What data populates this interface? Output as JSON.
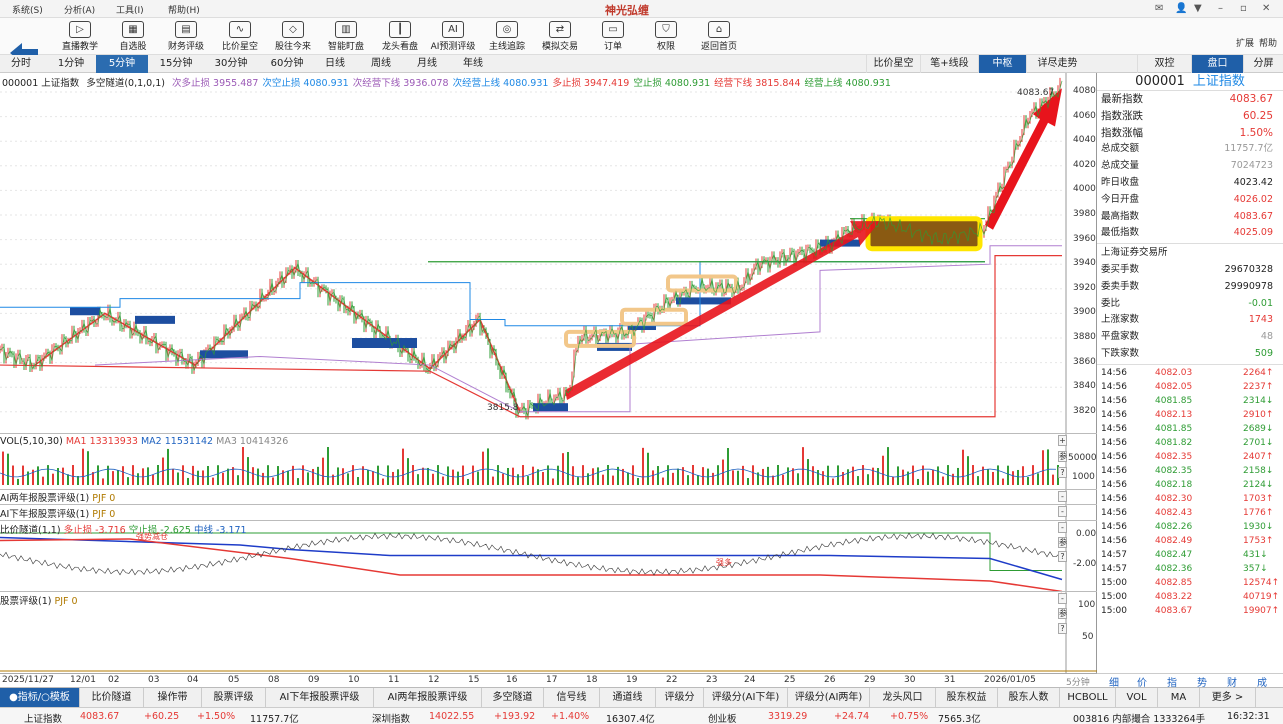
{
  "menu": {
    "items": [
      "系统(S)",
      "分析(A)",
      "工具(I)",
      "帮助(H)"
    ],
    "app_title": "神光弘缠"
  },
  "toolbar": {
    "buttons": [
      "直播教学",
      "自选股",
      "财务评级",
      "比价星空",
      "股往今来",
      "智能盯盘",
      "龙头看盘",
      "AI预测评级",
      "主线追踪",
      "模拟交易",
      "订单",
      "权限",
      "返回首页"
    ],
    "extra": [
      "扩展",
      "帮助"
    ]
  },
  "periods": {
    "tabs": [
      "分时",
      "1分钟",
      "5分钟",
      "15分钟",
      "30分钟",
      "60分钟",
      "日线",
      "周线",
      "月线",
      "年线"
    ],
    "active": "5分钟"
  },
  "right_tabs": {
    "items": [
      "比价星空",
      "笔+线段",
      "中枢",
      "详尽走势",
      "双控",
      "盘口",
      "分屏"
    ],
    "active": [
      "中枢",
      "盘口"
    ]
  },
  "main_legend": {
    "code_name": "000001 上证指数",
    "indicator": "多空隧道(0,1,0,1)",
    "items": [
      {
        "text": "次多止损 3955.487",
        "color": "#9b59b6"
      },
      {
        "text": "次空止损 4080.931",
        "color": "#1e88e5"
      },
      {
        "text": "次经营下线 3936.078",
        "color": "#9b59b6"
      },
      {
        "text": "次经营上线 4080.931",
        "color": "#1e88e5"
      },
      {
        "text": "多止损 3947.419",
        "color": "#e53935"
      },
      {
        "text": "空止损 4080.931",
        "color": "#2e9c34"
      },
      {
        "text": "经营下线 3815.844",
        "color": "#e53935"
      },
      {
        "text": "经营上线 4080.931",
        "color": "#2e9c34"
      }
    ]
  },
  "price_axis": {
    "labels": [
      "4080",
      "4060",
      "4040",
      "4020",
      "4000",
      "3980",
      "3960",
      "3940",
      "3920",
      "3900",
      "3880",
      "3860",
      "3840",
      "3820"
    ],
    "high_label": "4083.67",
    "low_label": "3815.8"
  },
  "vol_legend": {
    "title": "VOL(5,10,30)",
    "ma1": "MA1 13313933",
    "ma2": "MA2 11531142",
    "ma3": "MA3 10414326",
    "axis": [
      "50000",
      "1000"
    ]
  },
  "ai_two_year": {
    "title": "AI两年报股票评级(1)",
    "value": "PJF 0"
  },
  "ai_half_year": {
    "title": "AI下年报股票评级(1)",
    "value": "PJF 0"
  },
  "bijia": {
    "title": "比价隧道(1,1)",
    "duo": "多止损 -3.716",
    "kong": "空止损 -2.625",
    "mid": "中线 -3.171",
    "axis": [
      "0.00",
      "-2.00"
    ],
    "tag1": "强势减仓",
    "tag2": "强多"
  },
  "stock_rating": {
    "title": "股票评级(1)",
    "value": "PJF 0",
    "axis": [
      "100",
      "50"
    ]
  },
  "side_buttons": [
    "+",
    "参",
    "?",
    "-"
  ],
  "dates": [
    "2025/11/27",
    "12/01",
    "02",
    "03",
    "04",
    "05",
    "08",
    "09",
    "10",
    "11",
    "12",
    "15",
    "16",
    "17",
    "18",
    "19",
    "22",
    "23",
    "24",
    "25",
    "26",
    "29",
    "30",
    "31",
    "2026/01/05"
  ],
  "date_unit": "5分钟",
  "panel": {
    "code": "000001",
    "name": "上证指数",
    "rows": [
      {
        "label": "最新指数",
        "value": "4083.67",
        "color": "#e53935",
        "big": true
      },
      {
        "label": "指数涨跌",
        "value": "60.25",
        "color": "#e53935",
        "big": true
      },
      {
        "label": "指数涨幅",
        "value": "1.50%",
        "color": "#e53935",
        "big": true
      },
      {
        "label": "总成交额",
        "value": "11757.7亿",
        "color": "#999",
        "big": false
      },
      {
        "label": "总成交量",
        "value": "7024723",
        "color": "#999",
        "big": false
      },
      {
        "label": "昨日收盘",
        "value": "4023.42",
        "color": "#222",
        "big": false
      },
      {
        "label": "今日开盘",
        "value": "4026.02",
        "color": "#e53935",
        "big": false
      },
      {
        "label": "最高指数",
        "value": "4083.67",
        "color": "#e53935",
        "big": false
      },
      {
        "label": "最低指数",
        "value": "4025.09",
        "color": "#e53935",
        "big": false
      }
    ],
    "exchange": "上海证券交易所",
    "rows2": [
      {
        "label": "委买手数",
        "value": "29670328",
        "color": "#222"
      },
      {
        "label": "委卖手数",
        "value": "29990978",
        "color": "#222"
      },
      {
        "label": "委比",
        "value": "-0.01",
        "color": "#2e9c34"
      },
      {
        "label": "上涨家数",
        "value": "1743",
        "color": "#e53935"
      },
      {
        "label": "平盘家数",
        "value": "48",
        "color": "#999"
      },
      {
        "label": "下跌家数",
        "value": "509",
        "color": "#2e9c34"
      }
    ],
    "ticks": [
      {
        "t": "14:56",
        "p": "4082.03",
        "v": "2264↑",
        "c": "#e53935"
      },
      {
        "t": "14:56",
        "p": "4082.05",
        "v": "2237↑",
        "c": "#e53935"
      },
      {
        "t": "14:56",
        "p": "4081.85",
        "v": "2314↓",
        "c": "#2e9c34"
      },
      {
        "t": "14:56",
        "p": "4082.13",
        "v": "2910↑",
        "c": "#e53935"
      },
      {
        "t": "14:56",
        "p": "4081.85",
        "v": "2689↓",
        "c": "#2e9c34"
      },
      {
        "t": "14:56",
        "p": "4081.82",
        "v": "2701↓",
        "c": "#2e9c34"
      },
      {
        "t": "14:56",
        "p": "4082.35",
        "v": "2407↑",
        "c": "#e53935"
      },
      {
        "t": "14:56",
        "p": "4082.35",
        "v": "2158↓",
        "c": "#2e9c34"
      },
      {
        "t": "14:56",
        "p": "4082.18",
        "v": "2124↓",
        "c": "#2e9c34"
      },
      {
        "t": "14:56",
        "p": "4082.30",
        "v": "1703↑",
        "c": "#e53935"
      },
      {
        "t": "14:56",
        "p": "4082.43",
        "v": "1776↑",
        "c": "#e53935"
      },
      {
        "t": "14:56",
        "p": "4082.26",
        "v": "1930↓",
        "c": "#2e9c34"
      },
      {
        "t": "14:56",
        "p": "4082.49",
        "v": "1753↑",
        "c": "#e53935"
      },
      {
        "t": "14:57",
        "p": "4082.47",
        "v": "431↓",
        "c": "#2e9c34"
      },
      {
        "t": "14:57",
        "p": "4082.36",
        "v": "357↓",
        "c": "#2e9c34"
      },
      {
        "t": "15:00",
        "p": "4082.85",
        "v": "12574↑",
        "c": "#e53935"
      },
      {
        "t": "15:00",
        "p": "4083.22",
        "v": "40719↑",
        "c": "#e53935"
      },
      {
        "t": "15:00",
        "p": "4083.67",
        "v": "19907↑",
        "c": "#e53935"
      }
    ],
    "tabs": [
      "细",
      "价",
      "指",
      "势",
      "财",
      "成"
    ]
  },
  "bottom_tabs": {
    "items": [
      "●指标/○模板",
      "比价隧道",
      "操作带",
      "股票评级",
      "AI下年报股票评级",
      "AI两年报股票评级",
      "多空隧道",
      "信号线",
      "通道线",
      "评级分",
      "评级分(AI下年)",
      "评级分(AI两年)",
      "龙头风口",
      "股东权益",
      "股东人数",
      "HCBOLL",
      "VOL",
      "MA",
      "更多 >"
    ],
    "active": "●指标/○模板"
  },
  "status": {
    "sh_name": "上证指数",
    "sh_val": "4083.67",
    "sh_chg": "+60.25",
    "sh_pct": "+1.50%",
    "sh_amt": "11757.7亿",
    "sz_name": "深圳指数",
    "sz_val": "14022.55",
    "sz_chg": "+193.92",
    "sz_pct": "+1.40%",
    "sz_amt": "16307.4亿",
    "cy_name": "创业板",
    "cy_val": "3319.29",
    "cy_chg": "+24.74",
    "cy_pct": "+0.75%",
    "cy_amt": "7565.3亿",
    "info": "003816 内部撮合 1333264手",
    "time": "16:32:31"
  }
}
